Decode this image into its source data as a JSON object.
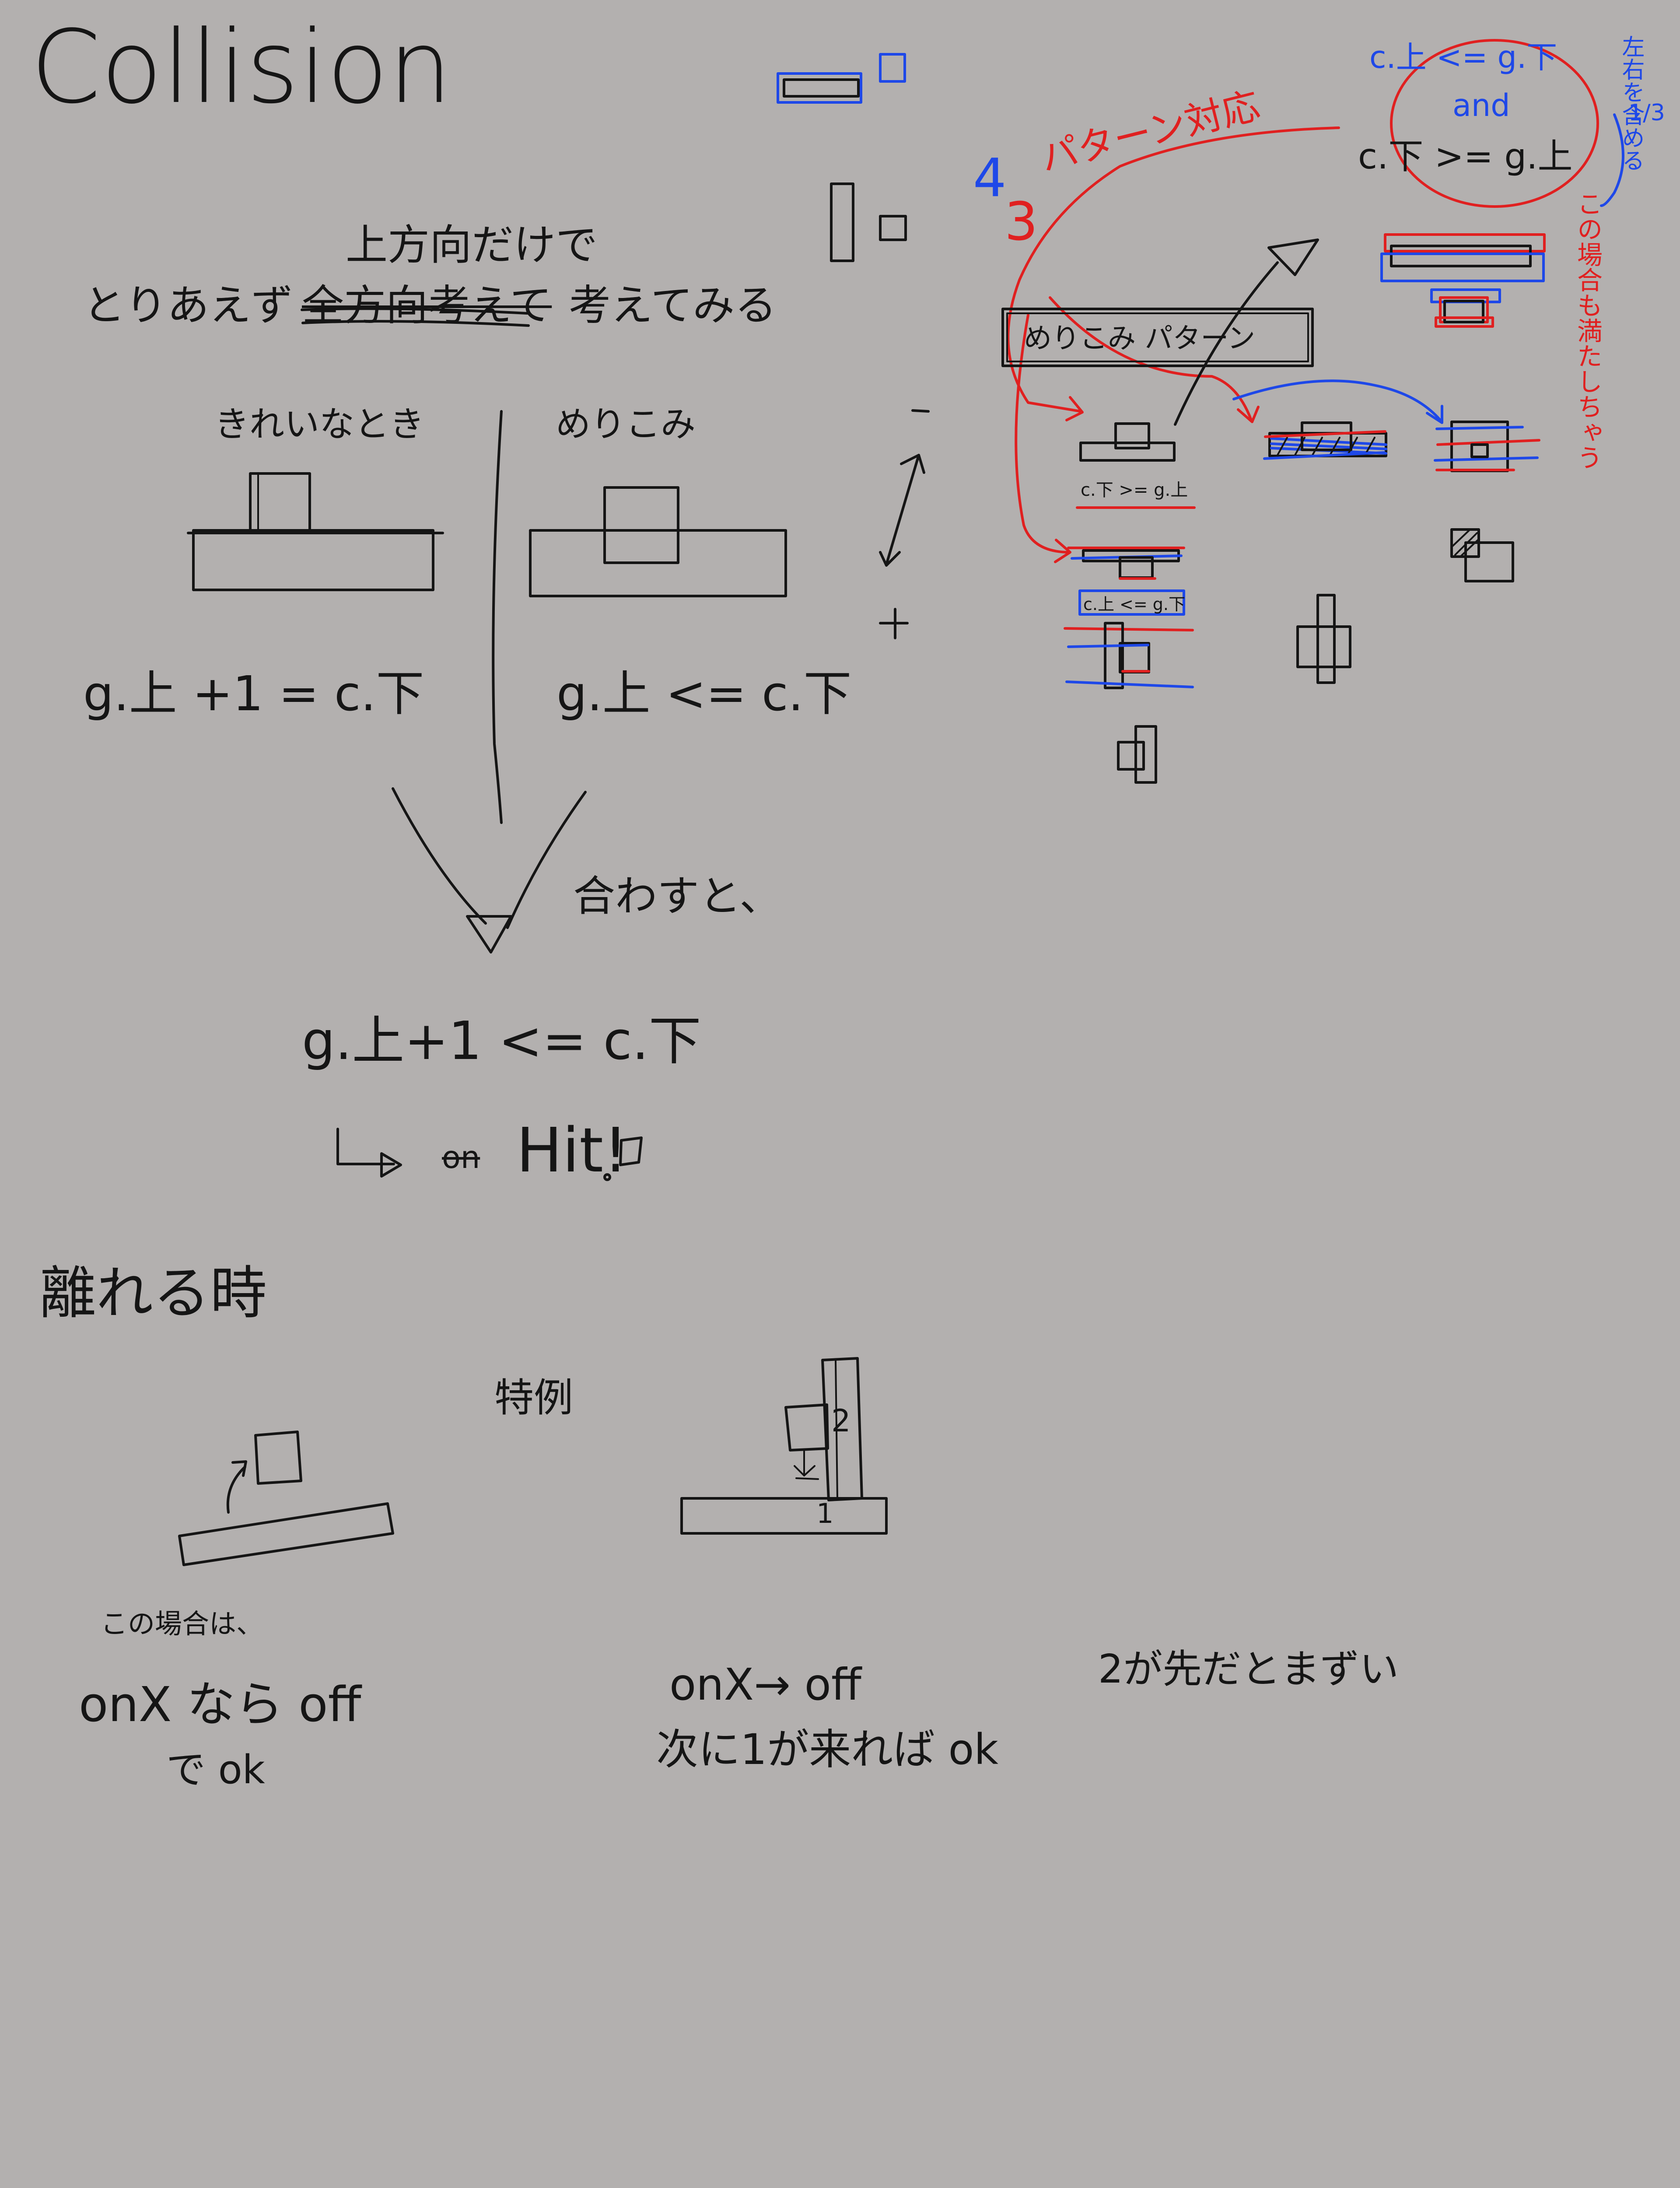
{
  "title": "Collision",
  "intro": {
    "above": "上方向だけで",
    "prefix": "とりあえず",
    "struck": "全方向考えて",
    "suffix": "考えてみる"
  },
  "clean": {
    "label": "きれいなとき",
    "formula": "g.上 +1 = c.下"
  },
  "sink": {
    "label": "めりこみ",
    "formula": "g.上 <= c.下"
  },
  "combine": {
    "label": "合わすと、",
    "formula": "g.上+1 <= c.下",
    "struck": "on",
    "result": "Hit!"
  },
  "separate": {
    "title": "離れる時",
    "special": "特例",
    "case_note": "この場合は、",
    "line1": "onX なら off",
    "line2": "で ok",
    "special_line1": "onX→ off",
    "special_line2": "次に1が来れば ok",
    "labels": {
      "one": "1",
      "two": "2"
    },
    "note": "2が先だとまずい"
  },
  "right": {
    "num_blue": "4",
    "num_red": "3",
    "pattern_label": "パターン対応",
    "condition_line1": "c.上 <= g.下",
    "condition_and": "and",
    "condition_line2": "c.下 >= g.上",
    "side_blue": "左右を含める",
    "side_blue_frac": "1/3",
    "side_red": "この場合も満たしちゃう",
    "box_label": "めりこみ パターン",
    "small1": "c.下 >= g.上",
    "small2": "c.上 <= g.下"
  },
  "colors": {
    "background": "#b3b0af",
    "ink": "#151515",
    "red": "#e02020",
    "blue": "#1e48e8"
  }
}
